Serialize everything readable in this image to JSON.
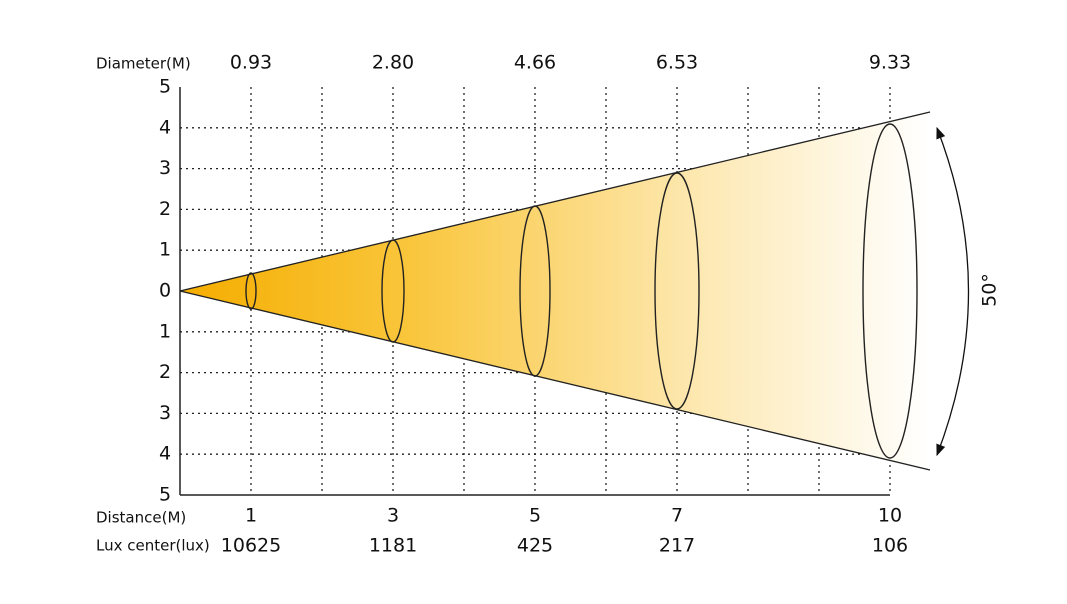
{
  "diameter_label": "Diameter(M)",
  "diameters": [
    "0.93",
    "2.80",
    "4.66",
    "6.53",
    "9.33"
  ],
  "y_labels": [
    "5",
    "4",
    "3",
    "2",
    "1",
    "0",
    "1",
    "2",
    "3",
    "4",
    "5"
  ],
  "distance_label": "Distance(M)",
  "distances": [
    "1",
    "3",
    "5",
    "7",
    "10"
  ],
  "lux_label": "Lux center(lux)",
  "lux": [
    "10625",
    "1181",
    "425",
    "217",
    "106"
  ],
  "angle": "50°"
}
